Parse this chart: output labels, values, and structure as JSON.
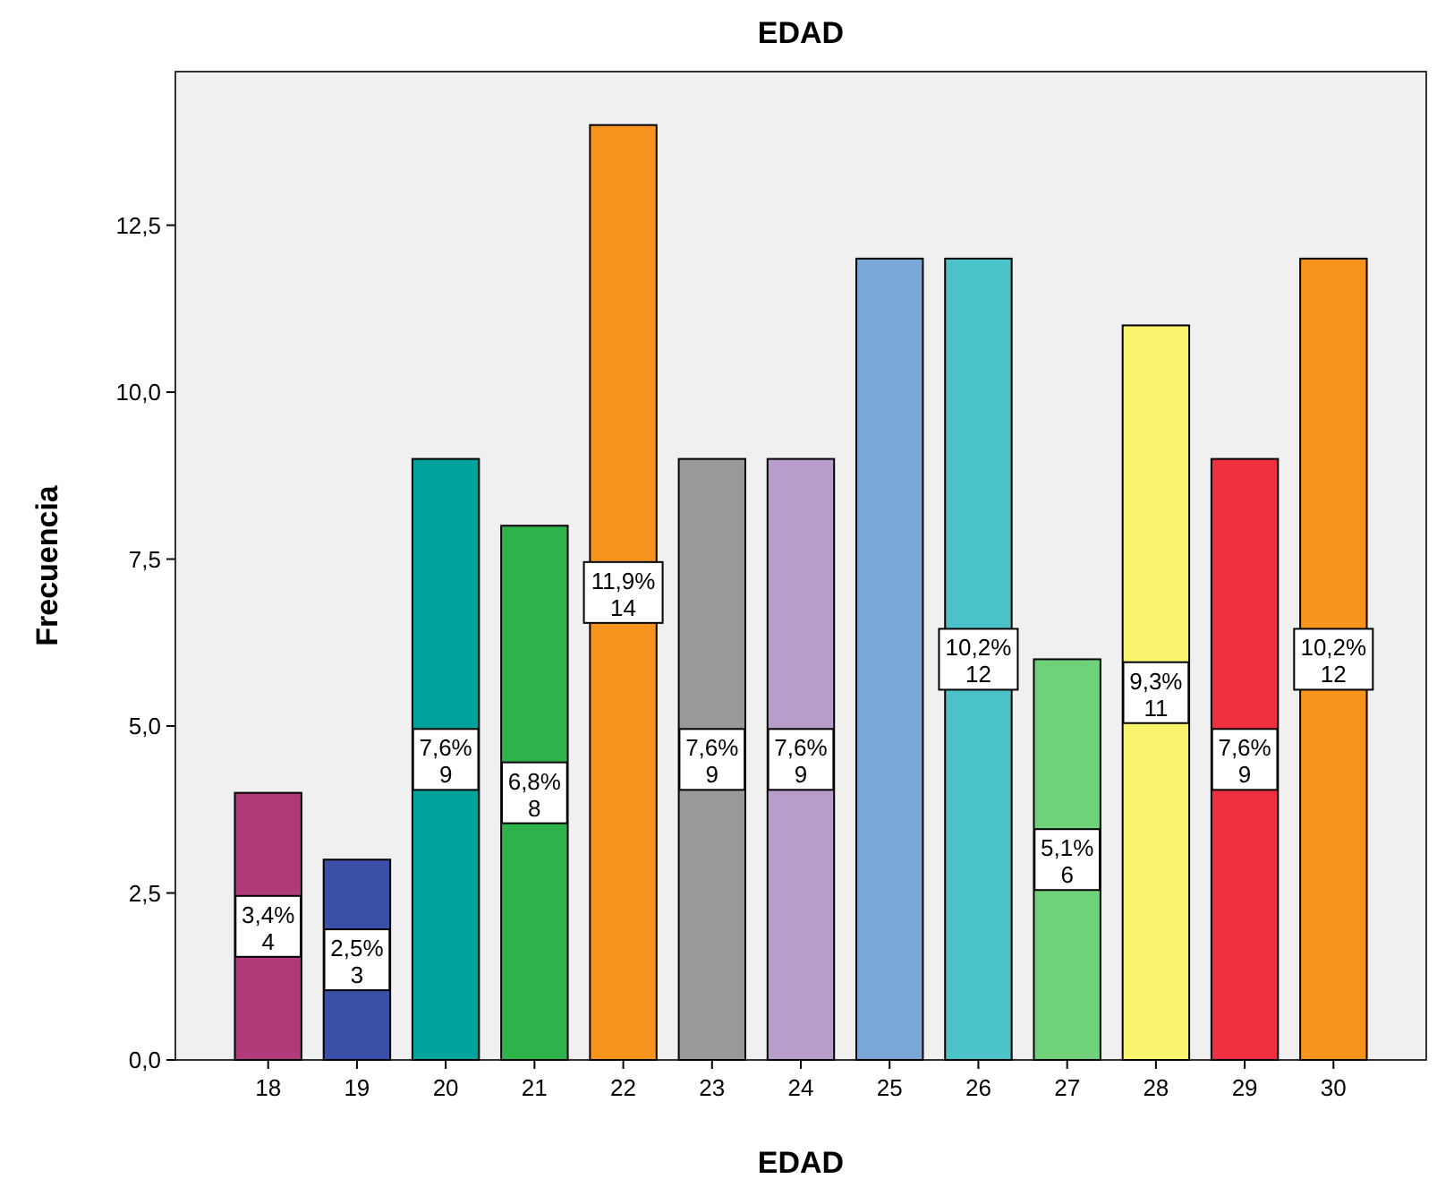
{
  "chart_data": {
    "type": "bar",
    "title": "EDAD",
    "xlabel": "EDAD",
    "ylabel": "Frecuencia",
    "categories": [
      "18",
      "19",
      "20",
      "21",
      "22",
      "23",
      "24",
      "25",
      "26",
      "27",
      "28",
      "29",
      "30"
    ],
    "values": [
      4,
      3,
      9,
      8,
      14,
      9,
      9,
      12,
      12,
      6,
      11,
      9,
      12
    ],
    "colors": [
      "#b03a7a",
      "#3a4fa8",
      "#00a39b",
      "#2db34a",
      "#f7941d",
      "#999999",
      "#b89ccb",
      "#7aa7d6",
      "#4cc3c9",
      "#6fd17a",
      "#f8f46d",
      "#ee3040",
      "#f7941d"
    ],
    "value_labels": [
      "3,4%\n4",
      "2,5%\n3",
      "7,6%\n9",
      "6,8%\n8",
      "11,9%\n14",
      "7,6%\n9",
      "7,6%\n9",
      null,
      "10,2%\n12",
      "5,1%\n6",
      "9,3%\n11",
      "7,6%\n9",
      "10,2%\n12"
    ],
    "ylim": [
      0,
      14.8
    ],
    "yticks": [
      {
        "value": 0,
        "label": "0,0"
      },
      {
        "value": 2.5,
        "label": "2,5"
      },
      {
        "value": 5,
        "label": "5,0"
      },
      {
        "value": 7.5,
        "label": "7,5"
      },
      {
        "value": 10,
        "label": "10,0"
      },
      {
        "value": 12.5,
        "label": "12,5"
      }
    ],
    "grid": false
  }
}
